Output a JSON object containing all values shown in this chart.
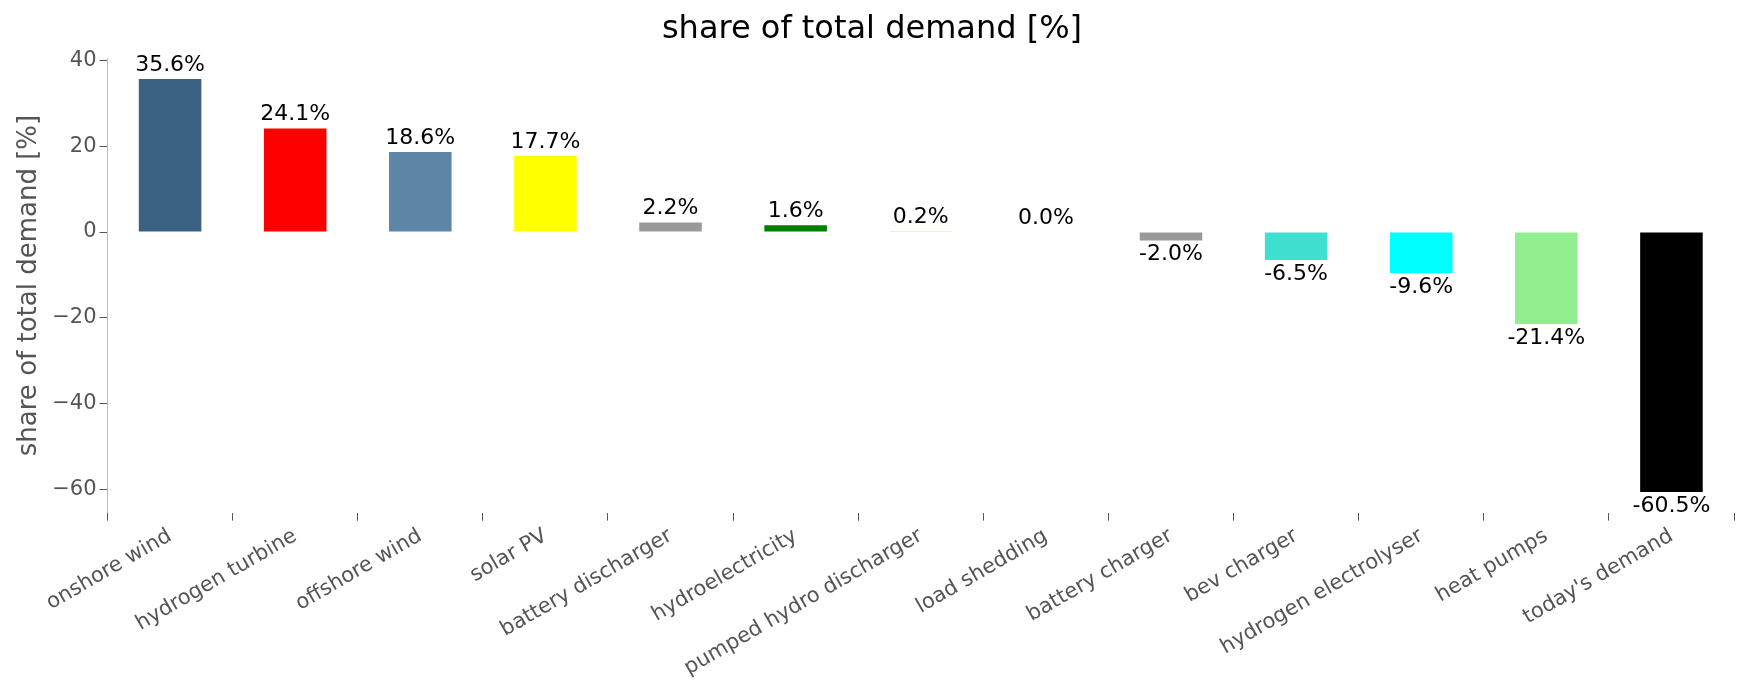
{
  "chart_data": {
    "type": "bar",
    "title": "share of total demand [%]",
    "ylabel": "share of total demand [%]",
    "categories": [
      "onshore wind",
      "hydrogen turbine",
      "offshore wind",
      "solar PV",
      "battery discharger",
      "hydroelectricity",
      "pumped hydro discharger",
      "load shedding",
      "battery charger",
      "bev charger",
      "hydrogen electrolyser",
      "heat pumps",
      "today's demand"
    ],
    "values": [
      35.6,
      24.1,
      18.6,
      17.7,
      2.2,
      1.6,
      0.2,
      0.0,
      -2.0,
      -6.5,
      -9.6,
      -21.4,
      -60.5
    ],
    "colors": [
      "#3b6182",
      "#ff0000",
      "#5c85a8",
      "#ffff00",
      "#999999",
      "#008000",
      "#aadd00",
      "#ff6600",
      "#999999",
      "#40e0d0",
      "#00ffff",
      "#90ee90",
      "#000000"
    ],
    "value_labels": [
      "35.6%",
      "24.1%",
      "18.6%",
      "17.7%",
      "2.2%",
      "1.6%",
      "0.2%",
      "0.0%",
      "-2.0%",
      "-6.5%",
      "-9.6%",
      "-21.4%",
      "-60.5%"
    ],
    "ylim": [
      -65.3,
      40.4
    ],
    "yticks": [
      -60,
      -40,
      -20,
      0,
      20,
      40
    ],
    "grid": false,
    "legend": false
  }
}
